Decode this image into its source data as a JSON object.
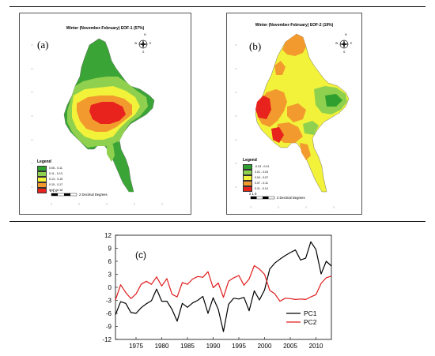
{
  "map_a": {
    "letter": "(a)",
    "title": "Winter (November-February) EOF-1 (57%)",
    "legend_title": "Legend",
    "legend": [
      {
        "label": "0.06 - 0.11",
        "color": "#2fa02f"
      },
      {
        "label": "0.11 - 0.13",
        "color": "#8fd14f"
      },
      {
        "label": "0.13 - 0.15",
        "color": "#f2f23a"
      },
      {
        "label": "0.15 - 0.17",
        "color": "#f29a2e"
      },
      {
        "label": "0.17 - 0.18",
        "color": "#e8221c"
      }
    ],
    "scale_numbers": "2  1  0",
    "scale_unit": "2 Decimal Degrees",
    "compass": {
      "n": "N",
      "e": "E",
      "s": "S",
      "w": "W"
    }
  },
  "map_b": {
    "letter": "(b)",
    "title": "Winter (November-February) EOF-2 (19%)",
    "legend_title": "Legend",
    "legend": [
      {
        "label": "-0.03 - 0.01",
        "color": "#2fa02f"
      },
      {
        "label": "0.01 - 0.04",
        "color": "#8fd14f"
      },
      {
        "label": "0.04 - 0.07",
        "color": "#f2f23a"
      },
      {
        "label": "0.07 - 0.11",
        "color": "#f29a2e"
      },
      {
        "label": "0.11 - 0.14",
        "color": "#e8221c"
      }
    ],
    "scale_numbers": "2  1  0",
    "scale_unit": "2 Decimal Degrees",
    "compass": {
      "n": "N",
      "e": "E",
      "s": "S",
      "w": "W"
    }
  },
  "chart_data": {
    "type": "line",
    "panel_label": "(c)",
    "title": "",
    "xlabel": "",
    "ylabel": "",
    "x": [
      1971,
      1972,
      1973,
      1974,
      1975,
      1976,
      1977,
      1978,
      1979,
      1980,
      1981,
      1982,
      1983,
      1984,
      1985,
      1986,
      1987,
      1988,
      1989,
      1990,
      1991,
      1992,
      1993,
      1994,
      1995,
      1996,
      1997,
      1998,
      1999,
      2000,
      2001,
      2002,
      2003,
      2004,
      2005,
      2006,
      2007,
      2008,
      2009,
      2010,
      2011,
      2012,
      2013
    ],
    "xlim": [
      1971,
      2013
    ],
    "ylim": [
      -12,
      12
    ],
    "xticks": [
      1975,
      1980,
      1985,
      1990,
      1995,
      2000,
      2005,
      2010
    ],
    "yticks": [
      12,
      9,
      6,
      3,
      0,
      -3,
      -6,
      -9,
      -12
    ],
    "grid": false,
    "legend_position": "bottom-right",
    "series": [
      {
        "name": "PC1",
        "color": "#000000",
        "values": [
          -6.3,
          -3.3,
          -3.7,
          -5.8,
          -6.0,
          -4.7,
          -3.8,
          -3.1,
          -0.4,
          -3.2,
          -3.2,
          -5.1,
          -7.8,
          -3.7,
          -4.6,
          -3.6,
          -3.0,
          -2.1,
          -6.0,
          -2.4,
          -5.1,
          -10.2,
          -3.9,
          -2.5,
          -2.7,
          -2.3,
          -5.4,
          -0.8,
          -2.9,
          -0.6,
          4.2,
          5.6,
          6.5,
          7.3,
          8.0,
          8.6,
          6.3,
          6.7,
          10.5,
          8.7,
          3.1,
          6.0,
          4.9
        ]
      },
      {
        "name": "PC2",
        "color": "#e01b1b",
        "values": [
          -2.9,
          0.6,
          -1.2,
          -2.6,
          -1.5,
          0.7,
          1.4,
          0.7,
          2.4,
          0.3,
          2.0,
          -1.6,
          -2.2,
          1.1,
          0.7,
          1.9,
          2.5,
          2.3,
          3.6,
          -0.1,
          1.0,
          -2.3,
          1.4,
          2.2,
          2.7,
          0.5,
          1.9,
          5.0,
          4.2,
          3.0,
          -0.7,
          -1.5,
          -3.2,
          -2.5,
          -2.6,
          -2.8,
          -2.7,
          -2.8,
          -2.2,
          -1.7,
          0.9,
          2.2,
          2.6
        ]
      }
    ]
  }
}
